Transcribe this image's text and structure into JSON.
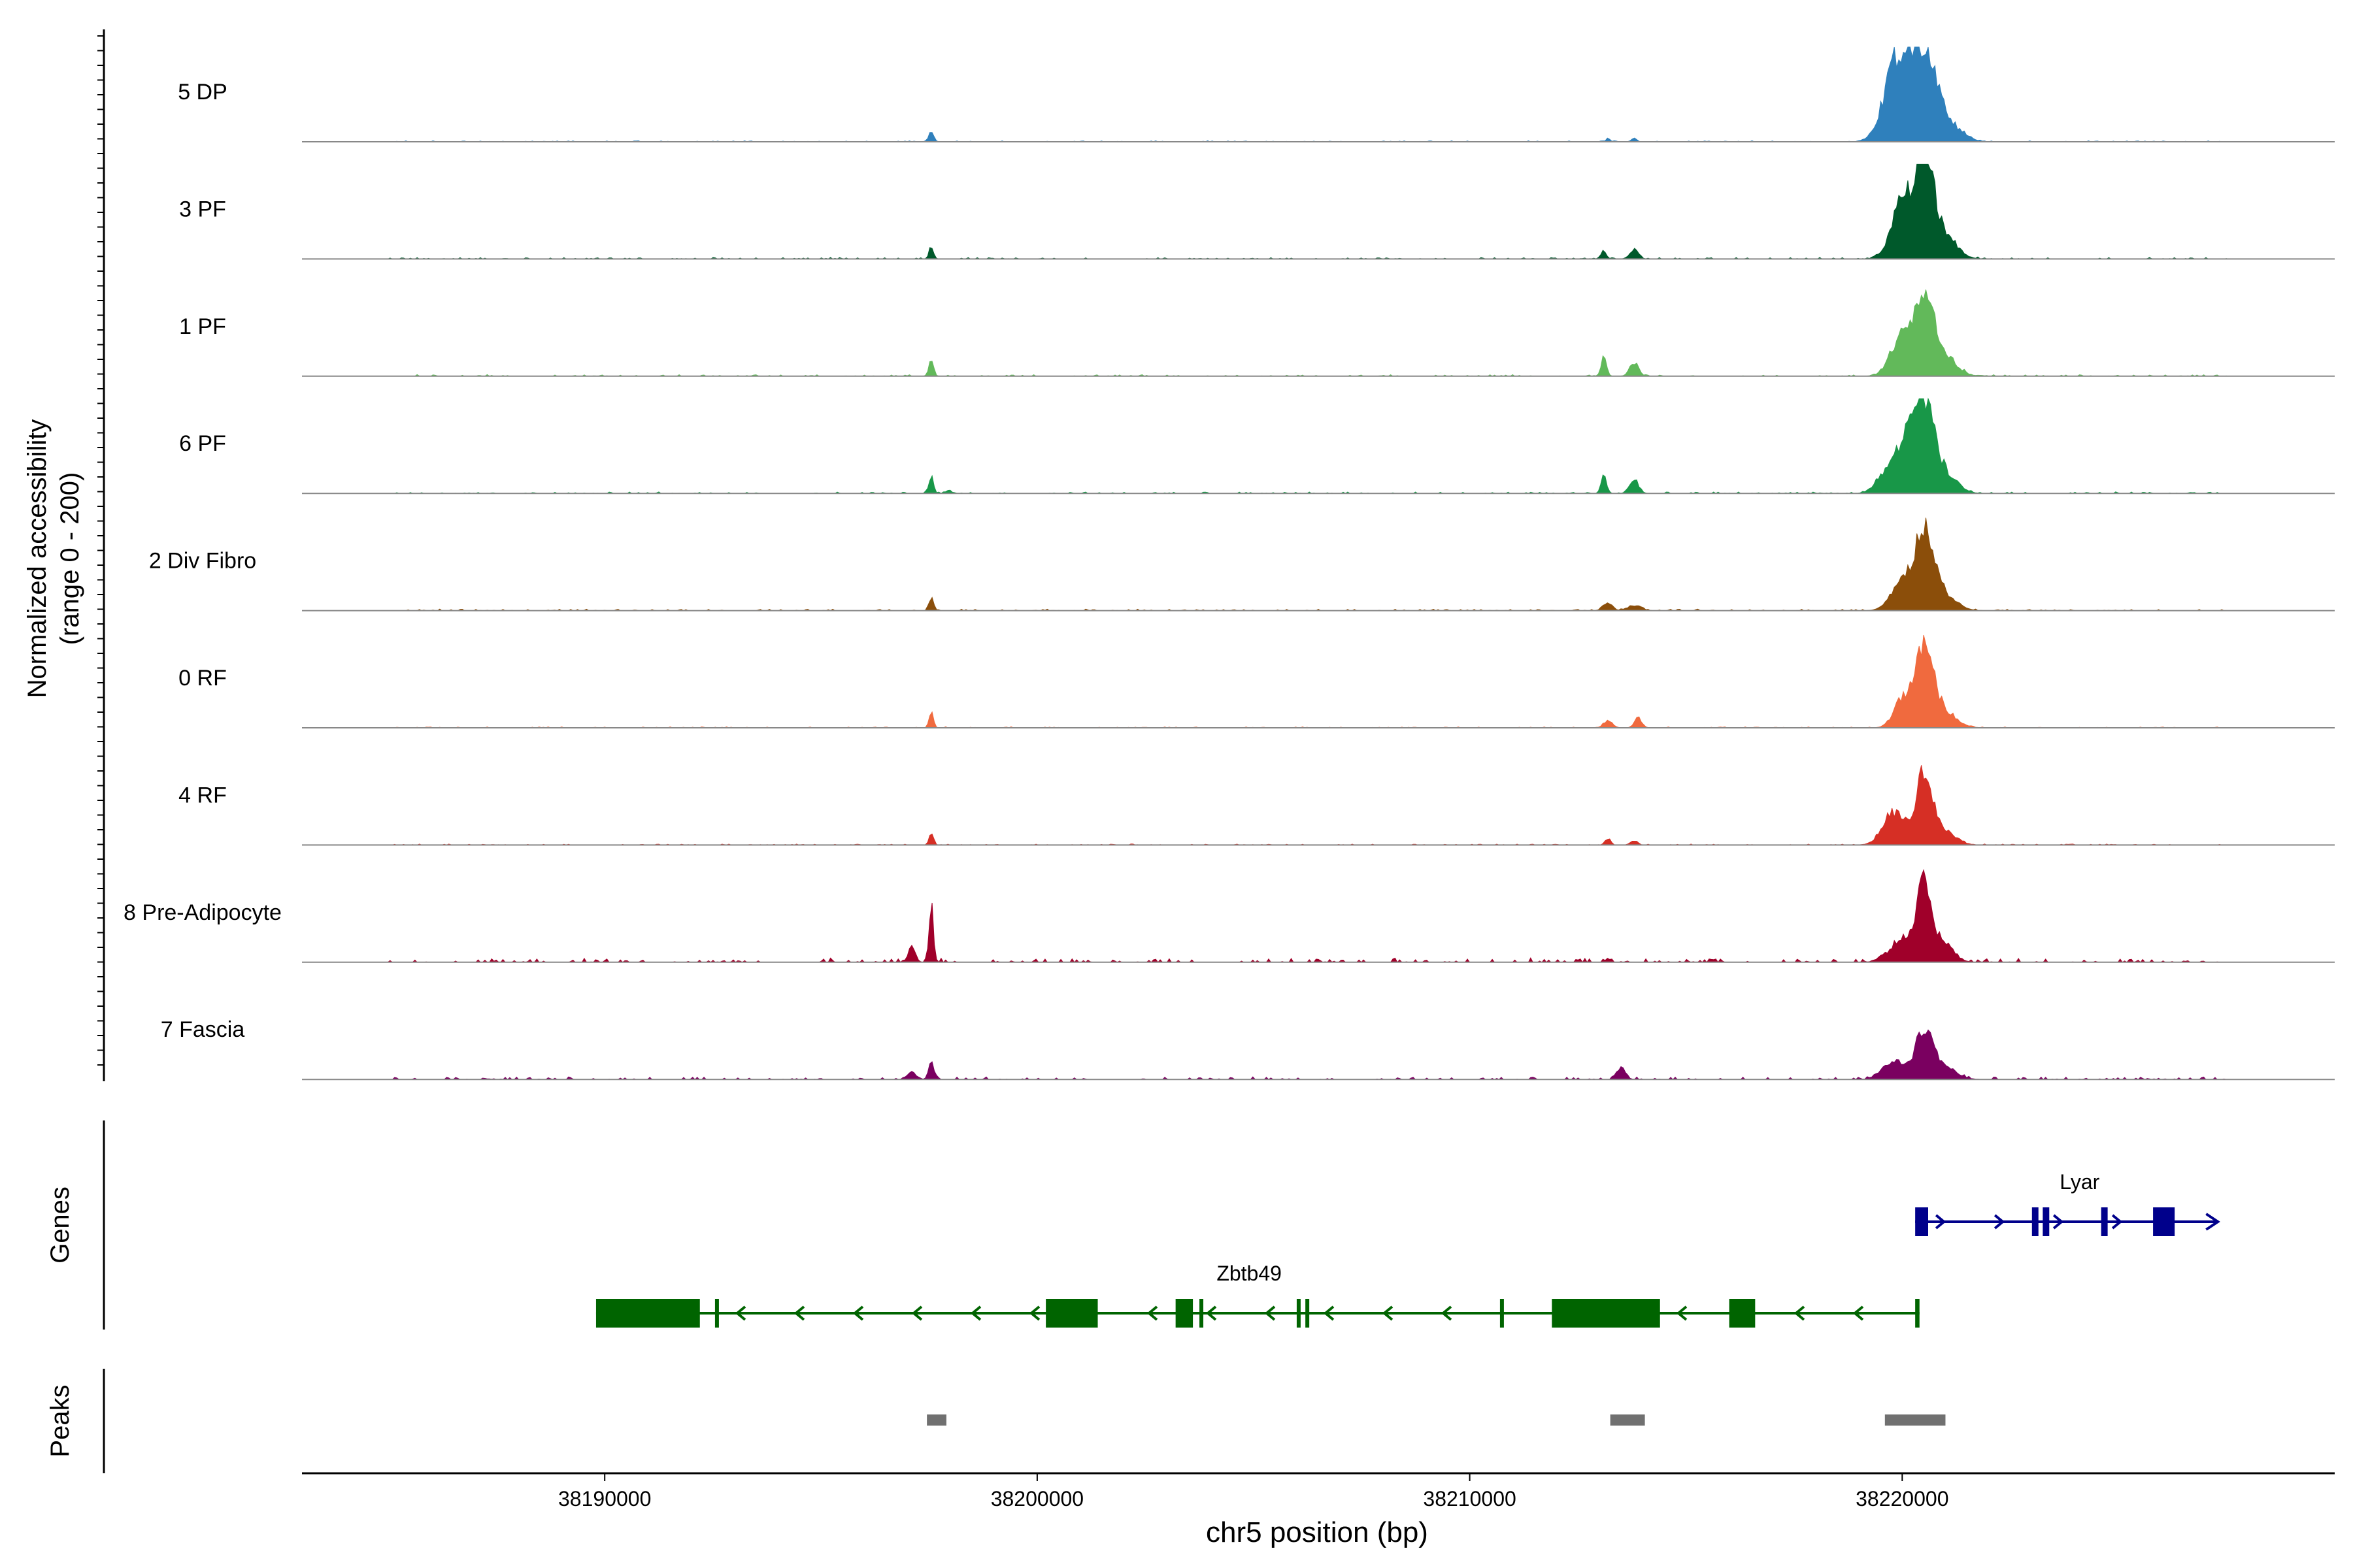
{
  "chart_data": {
    "type": "area",
    "chromosome": "chr5",
    "xlabel": "chr5 position (bp)",
    "xlim": [
      38183000,
      38230000
    ],
    "x_ticks": [
      38190000,
      38200000,
      38210000,
      38220000
    ],
    "tick_labels": [
      "38190000",
      "38200000",
      "38210000",
      "38220000"
    ],
    "ylabel_line1": "Normalized accessibility",
    "ylabel_line2": "(range 0 - 200)",
    "ylim": [
      0,
      200
    ],
    "tracks": [
      {
        "name": "5 DP",
        "color": "#2f80bc",
        "peaks": [
          [
            38197550,
            25,
            50
          ],
          [
            38213800,
            8,
            60
          ],
          [
            38213200,
            6,
            50
          ],
          [
            38219900,
            180,
            300
          ],
          [
            38220500,
            175,
            250
          ],
          [
            38220900,
            50,
            300
          ],
          [
            38221400,
            10,
            200
          ]
        ],
        "noise": 2
      },
      {
        "name": "3 PF",
        "color": "#00592b",
        "peaks": [
          [
            38197550,
            28,
            50
          ],
          [
            38213100,
            18,
            60
          ],
          [
            38213800,
            20,
            100
          ],
          [
            38220000,
            120,
            250
          ],
          [
            38220500,
            200,
            200
          ],
          [
            38220900,
            60,
            300
          ]
        ],
        "noise": 3
      },
      {
        "name": "1 PF",
        "color": "#62b95a",
        "peaks": [
          [
            38197550,
            40,
            50
          ],
          [
            38213100,
            40,
            60
          ],
          [
            38213800,
            30,
            100
          ],
          [
            38220000,
            90,
            250
          ],
          [
            38220500,
            170,
            200
          ],
          [
            38220900,
            50,
            300
          ]
        ],
        "noise": 3
      },
      {
        "name": "6 PF",
        "color": "#189748",
        "peaks": [
          [
            38197550,
            40,
            50
          ],
          [
            38197950,
            8,
            60
          ],
          [
            38213100,
            40,
            60
          ],
          [
            38213800,
            30,
            100
          ],
          [
            38219700,
            50,
            250
          ],
          [
            38220100,
            100,
            200
          ],
          [
            38220500,
            185,
            200
          ],
          [
            38220900,
            50,
            300
          ]
        ],
        "noise": 3
      },
      {
        "name": "2 Div Fibro",
        "color": "#8b4e0a",
        "peaks": [
          [
            38197550,
            30,
            50
          ],
          [
            38213200,
            18,
            100
          ],
          [
            38213800,
            12,
            150
          ],
          [
            38220000,
            60,
            250
          ],
          [
            38220500,
            165,
            200
          ],
          [
            38220900,
            40,
            300
          ]
        ],
        "noise": 3
      },
      {
        "name": "0 RF",
        "color": "#f06a3e",
        "peaks": [
          [
            38197550,
            30,
            50
          ],
          [
            38213200,
            16,
            100
          ],
          [
            38213900,
            22,
            80
          ],
          [
            38220000,
            60,
            200
          ],
          [
            38220500,
            160,
            200
          ],
          [
            38220900,
            40,
            300
          ]
        ],
        "noise": 2
      },
      {
        "name": "4 RF",
        "color": "#d62f25",
        "peaks": [
          [
            38197550,
            25,
            50
          ],
          [
            38213200,
            14,
            60
          ],
          [
            38213800,
            10,
            80
          ],
          [
            38219800,
            70,
            250
          ],
          [
            38220500,
            140,
            200
          ],
          [
            38220900,
            30,
            300
          ]
        ],
        "noise": 2
      },
      {
        "name": "8 Pre-Adipocyte",
        "color": "#a0002a",
        "peaks": [
          [
            38197550,
            125,
            50
          ],
          [
            38197100,
            32,
            80
          ],
          [
            38213200,
            8,
            60
          ],
          [
            38219700,
            20,
            200
          ],
          [
            38220100,
            50,
            200
          ],
          [
            38220500,
            175,
            150
          ],
          [
            38220900,
            50,
            250
          ]
        ],
        "noise": 8
      },
      {
        "name": "7 Fascia",
        "color": "#7a0060",
        "peaks": [
          [
            38197550,
            35,
            60
          ],
          [
            38197100,
            15,
            100
          ],
          [
            38213500,
            25,
            100
          ],
          [
            38219800,
            40,
            250
          ],
          [
            38220500,
            100,
            200
          ],
          [
            38220900,
            30,
            300
          ]
        ],
        "noise": 5
      }
    ],
    "genes_label": "Genes",
    "genes": [
      {
        "name": "Lyar",
        "strand": "+",
        "color": "#00008b",
        "start": 38220300,
        "end": 38227300,
        "exons": [
          [
            38220300,
            38220600
          ],
          [
            38223000,
            38223150
          ],
          [
            38223250,
            38223400
          ],
          [
            38224600,
            38224750
          ],
          [
            38225800,
            38226300
          ]
        ]
      },
      {
        "name": "Zbtb49",
        "strand": "-",
        "color": "#006400",
        "start": 38189800,
        "end": 38220400,
        "exons": [
          [
            38189800,
            38192200
          ],
          [
            38192550,
            38192620
          ],
          [
            38200200,
            38201400
          ],
          [
            38203200,
            38203600
          ],
          [
            38203750,
            38203820
          ],
          [
            38206000,
            38206070
          ],
          [
            38206200,
            38206270
          ],
          [
            38210700,
            38210760
          ],
          [
            38211900,
            38214400
          ],
          [
            38216000,
            38216600
          ],
          [
            38220300,
            38220400
          ]
        ]
      }
    ],
    "peaks_label": "Peaks",
    "peak_regions": [
      [
        38197450,
        38197900
      ],
      [
        38213250,
        38214050
      ],
      [
        38219600,
        38221000
      ]
    ]
  }
}
